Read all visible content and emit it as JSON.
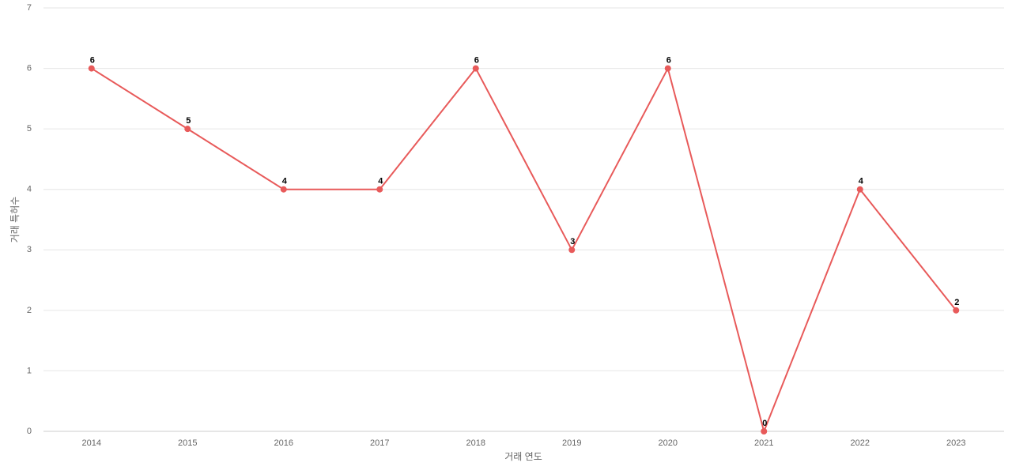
{
  "chart_data": {
    "type": "line",
    "x_label": "거래 연도",
    "y_label": "거래 특허수",
    "categories": [
      "2014",
      "2015",
      "2016",
      "2017",
      "2018",
      "2019",
      "2020",
      "2021",
      "2022",
      "2023"
    ],
    "series": [
      {
        "color": "#e85a5a",
        "values": [
          6,
          5,
          4,
          4,
          6,
          3,
          6,
          0,
          4,
          2
        ]
      }
    ],
    "ylim": [
      0,
      7
    ],
    "yticks": [
      0,
      1,
      2,
      3,
      4,
      5,
      6,
      7
    ],
    "grid": true
  }
}
